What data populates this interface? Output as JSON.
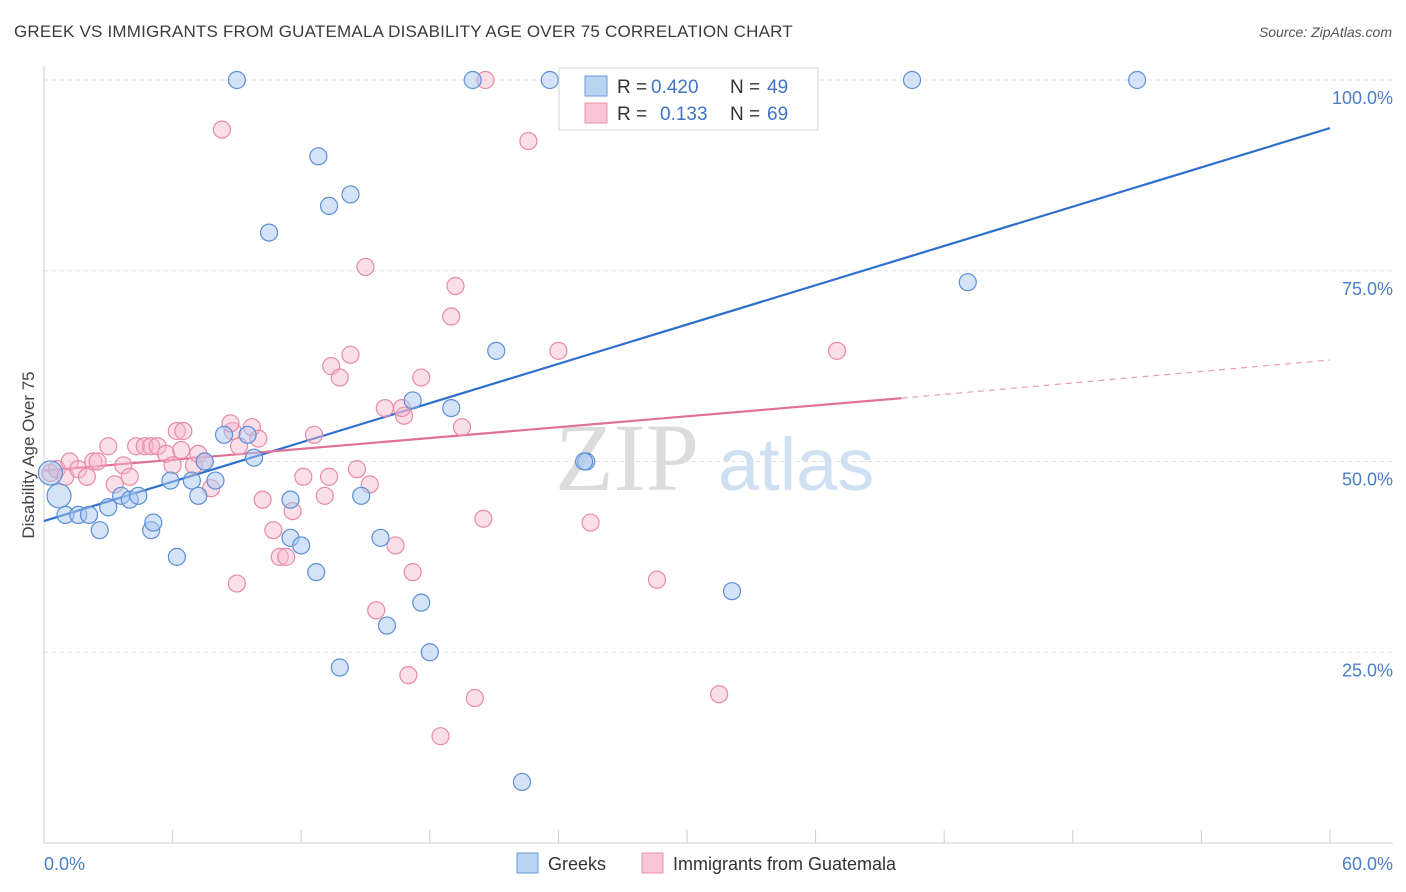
{
  "header": {
    "title": "GREEK VS IMMIGRANTS FROM GUATEMALA DISABILITY AGE OVER 75 CORRELATION CHART",
    "source": "Source: ZipAtlas.com"
  },
  "watermark": {
    "zip": "ZIP",
    "atlas": "atlas"
  },
  "legend": {
    "items": [
      {
        "r_label": "R =",
        "r_value": "0.420",
        "n_label": "N =",
        "n_value": "49"
      },
      {
        "r_label": "R =",
        "r_value": "0.133",
        "n_label": "N =",
        "n_value": "69"
      }
    ]
  },
  "bottom_legend": {
    "items": [
      {
        "label": "Greeks"
      },
      {
        "label": "Immigrants from Guatemala"
      }
    ]
  },
  "chart_data": {
    "type": "scatter",
    "title": "GREEK VS IMMIGRANTS FROM GUATEMALA DISABILITY AGE OVER 75 CORRELATION CHART",
    "ylabel": "Disability Age Over 75",
    "xlabel": "",
    "xlim": [
      0,
      60
    ],
    "ylim": [
      0,
      100
    ],
    "x_tick_labels": [
      "0.0%",
      "60.0%"
    ],
    "y_tick_labels": [
      "100.0%",
      "75.0%",
      "50.0%",
      "25.0%"
    ],
    "y_tick_values": [
      100,
      75,
      50,
      25
    ],
    "grid": true,
    "legend_position": "top-center",
    "colors": {
      "greeks_fill": "#a9c8f0",
      "greeks_stroke": "#5b8fd6",
      "greeks_line": "#2f6fce",
      "guatemala_fill": "#f6b8cb",
      "guatemala_stroke": "#e88aa8",
      "guatemala_line": "#e0709a",
      "tick_label": "#4a7ec7"
    },
    "series": [
      {
        "name": "Greeks",
        "r": 0.42,
        "n": 49,
        "trend": {
          "x": [
            0,
            60
          ],
          "y": [
            42.2,
            93.7
          ]
        },
        "points": [
          [
            0.3,
            48.5
          ],
          [
            0.7,
            45.5
          ],
          [
            1.0,
            43.0
          ],
          [
            1.6,
            43.0
          ],
          [
            2.1,
            43.0
          ],
          [
            2.6,
            41.0
          ],
          [
            3.0,
            44.0
          ],
          [
            3.6,
            45.5
          ],
          [
            4.0,
            45.0
          ],
          [
            4.4,
            45.5
          ],
          [
            5.0,
            41.0
          ],
          [
            5.1,
            42.0
          ],
          [
            5.9,
            47.5
          ],
          [
            6.2,
            37.5
          ],
          [
            6.9,
            47.5
          ],
          [
            7.2,
            45.5
          ],
          [
            7.5,
            50.0
          ],
          [
            8.0,
            47.5
          ],
          [
            8.4,
            53.5
          ],
          [
            9.0,
            100.0
          ],
          [
            9.5,
            53.5
          ],
          [
            9.8,
            50.5
          ],
          [
            10.5,
            80.0
          ],
          [
            11.5,
            40.0
          ],
          [
            11.5,
            45.0
          ],
          [
            12.0,
            39.0
          ],
          [
            12.7,
            35.5
          ],
          [
            12.8,
            90.0
          ],
          [
            13.3,
            83.5
          ],
          [
            13.8,
            23.0
          ],
          [
            14.3,
            85.0
          ],
          [
            14.8,
            45.5
          ],
          [
            15.7,
            40.0
          ],
          [
            16.0,
            28.5
          ],
          [
            17.2,
            58.0
          ],
          [
            17.6,
            31.5
          ],
          [
            18.0,
            25.0
          ],
          [
            19.0,
            57.0
          ],
          [
            20.0,
            100.0
          ],
          [
            21.1,
            64.5
          ],
          [
            22.3,
            8.0
          ],
          [
            23.6,
            100.0
          ],
          [
            24.6,
            100.0
          ],
          [
            25.3,
            50.0
          ],
          [
            32.1,
            33.0
          ],
          [
            40.5,
            100.0
          ],
          [
            43.1,
            73.5
          ],
          [
            51.0,
            100.0
          ],
          [
            25.2,
            50.0
          ]
        ]
      },
      {
        "name": "Immigrants from Guatemala",
        "r": 0.133,
        "n": 69,
        "trend": {
          "x": [
            0,
            40
          ],
          "y": [
            48.8,
            58.3
          ]
        },
        "trend_dashed": {
          "x": [
            40,
            60
          ],
          "y": [
            58.3,
            63.3
          ]
        },
        "points": [
          [
            0.3,
            48.5
          ],
          [
            0.6,
            49.0
          ],
          [
            1.0,
            48.0
          ],
          [
            1.2,
            50.0
          ],
          [
            1.6,
            49.0
          ],
          [
            2.0,
            48.0
          ],
          [
            2.3,
            50.0
          ],
          [
            2.5,
            50.0
          ],
          [
            3.0,
            52.0
          ],
          [
            3.3,
            47.0
          ],
          [
            3.7,
            49.5
          ],
          [
            4.0,
            48.0
          ],
          [
            4.3,
            52.0
          ],
          [
            4.7,
            52.0
          ],
          [
            5.0,
            52.0
          ],
          [
            5.3,
            52.0
          ],
          [
            5.7,
            51.0
          ],
          [
            6.0,
            49.5
          ],
          [
            6.2,
            54.0
          ],
          [
            6.5,
            54.0
          ],
          [
            7.0,
            49.5
          ],
          [
            7.2,
            51.0
          ],
          [
            7.5,
            50.0
          ],
          [
            7.8,
            46.5
          ],
          [
            8.3,
            93.5
          ],
          [
            8.8,
            54.0
          ],
          [
            9.0,
            34.0
          ],
          [
            9.1,
            52.0
          ],
          [
            9.7,
            54.5
          ],
          [
            10.0,
            53.0
          ],
          [
            10.2,
            45.0
          ],
          [
            10.7,
            41.0
          ],
          [
            11.0,
            37.5
          ],
          [
            11.3,
            37.5
          ],
          [
            11.6,
            43.5
          ],
          [
            12.1,
            48.0
          ],
          [
            12.6,
            53.5
          ],
          [
            13.1,
            45.5
          ],
          [
            13.4,
            62.5
          ],
          [
            13.8,
            61.0
          ],
          [
            14.3,
            64.0
          ],
          [
            14.6,
            49.0
          ],
          [
            15.0,
            75.5
          ],
          [
            15.2,
            47.0
          ],
          [
            15.5,
            30.5
          ],
          [
            15.9,
            57.0
          ],
          [
            16.4,
            39.0
          ],
          [
            16.8,
            56.0
          ],
          [
            17.0,
            22.0
          ],
          [
            17.2,
            35.5
          ],
          [
            17.6,
            61.0
          ],
          [
            18.5,
            14.0
          ],
          [
            19.0,
            69.0
          ],
          [
            19.2,
            73.0
          ],
          [
            19.5,
            54.5
          ],
          [
            20.1,
            19.0
          ],
          [
            20.5,
            42.5
          ],
          [
            20.6,
            100.0
          ],
          [
            22.6,
            92.0
          ],
          [
            24.0,
            64.5
          ],
          [
            25.5,
            42.0
          ],
          [
            28.6,
            34.5
          ],
          [
            31.5,
            19.5
          ],
          [
            37.0,
            64.5
          ],
          [
            33.0,
            100.0
          ],
          [
            16.7,
            57.0
          ],
          [
            13.3,
            48.0
          ],
          [
            8.7,
            55.0
          ],
          [
            6.4,
            51.5
          ]
        ]
      }
    ]
  }
}
